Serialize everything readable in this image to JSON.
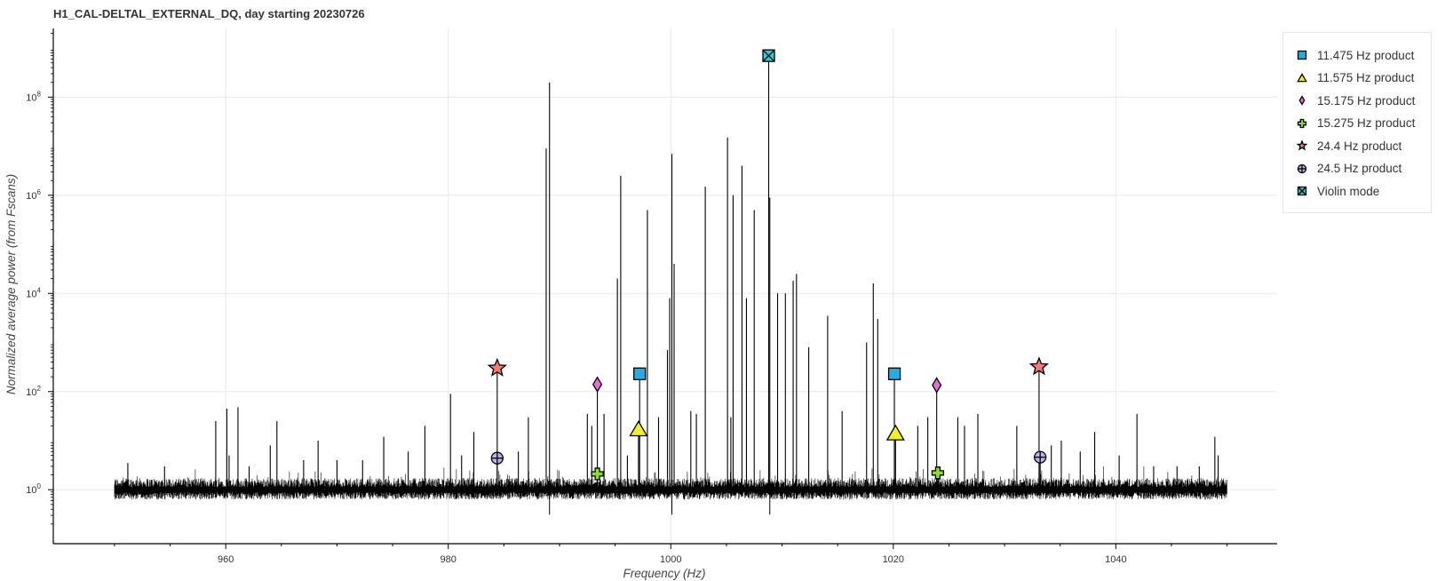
{
  "chart_data": {
    "type": "line",
    "title": "H1_CAL-DELTAL_EXTERNAL_DQ, day starting 20230726",
    "xlabel": "Frequency (Hz)",
    "ylabel": "Normalized average power (from Fscans)",
    "xlim": [
      944.5,
      1054.5
    ],
    "ylim_log10": [
      -1.1,
      9.4
    ],
    "y_scale": "log",
    "grid": true,
    "legend_position": "right",
    "x_ticks": [
      960,
      980,
      1000,
      1020,
      1040
    ],
    "x_tick_labels": [
      "960",
      "980",
      "1000",
      "1020",
      "1040"
    ],
    "y_ticks_exp": [
      0,
      2,
      4,
      6,
      8
    ],
    "y_tick_labels": [
      {
        "base": "10",
        "exp": "0"
      },
      {
        "base": "10",
        "exp": "2"
      },
      {
        "base": "10",
        "exp": "4"
      },
      {
        "base": "10",
        "exp": "6"
      },
      {
        "base": "10",
        "exp": "8"
      }
    ],
    "noise_floor": {
      "x_start": 950,
      "x_end": 1050,
      "level": 1
    },
    "spectrum_peaks": [
      {
        "x": 951.2,
        "y": 3.5
      },
      {
        "x": 954.5,
        "y": 3
      },
      {
        "x": 959.1,
        "y": 25
      },
      {
        "x": 960.1,
        "y": 45
      },
      {
        "x": 960.3,
        "y": 5
      },
      {
        "x": 961.1,
        "y": 48
      },
      {
        "x": 962.1,
        "y": 3
      },
      {
        "x": 964.0,
        "y": 8
      },
      {
        "x": 964.6,
        "y": 25
      },
      {
        "x": 967.0,
        "y": 4
      },
      {
        "x": 968.3,
        "y": 10
      },
      {
        "x": 970.0,
        "y": 4
      },
      {
        "x": 972.3,
        "y": 4
      },
      {
        "x": 974.2,
        "y": 12
      },
      {
        "x": 976.4,
        "y": 6
      },
      {
        "x": 977.9,
        "y": 20
      },
      {
        "x": 980.2,
        "y": 90
      },
      {
        "x": 981.2,
        "y": 5
      },
      {
        "x": 982.3,
        "y": 15
      },
      {
        "x": 986.3,
        "y": 6
      },
      {
        "x": 987.2,
        "y": 30
      },
      {
        "x": 988.8,
        "y": 9000000
      },
      {
        "x": 989.1,
        "y": 200000000
      },
      {
        "x": 992.5,
        "y": 35
      },
      {
        "x": 992.9,
        "y": 20
      },
      {
        "x": 994.0,
        "y": 35
      },
      {
        "x": 995.2,
        "y": 20000
      },
      {
        "x": 995.5,
        "y": 2500000
      },
      {
        "x": 996.1,
        "y": 5
      },
      {
        "x": 997.9,
        "y": 500000
      },
      {
        "x": 998.9,
        "y": 30
      },
      {
        "x": 999.7,
        "y": 700
      },
      {
        "x": 999.9,
        "y": 8000
      },
      {
        "x": 1000.1,
        "y": 7000000
      },
      {
        "x": 1000.3,
        "y": 40000
      },
      {
        "x": 1001.8,
        "y": 40
      },
      {
        "x": 1002.3,
        "y": 35
      },
      {
        "x": 1003.1,
        "y": 1500000
      },
      {
        "x": 1005.1,
        "y": 15000000
      },
      {
        "x": 1005.4,
        "y": 30
      },
      {
        "x": 1005.6,
        "y": 1000000
      },
      {
        "x": 1006.4,
        "y": 4000000
      },
      {
        "x": 1006.8,
        "y": 8000
      },
      {
        "x": 1007.5,
        "y": 500000
      },
      {
        "x": 1008.9,
        "y": 900000
      },
      {
        "x": 1009.6,
        "y": 10000
      },
      {
        "x": 1010.3,
        "y": 10000
      },
      {
        "x": 1011.0,
        "y": 18000
      },
      {
        "x": 1011.3,
        "y": 25000
      },
      {
        "x": 1012.4,
        "y": 800
      },
      {
        "x": 1014.1,
        "y": 3500
      },
      {
        "x": 1015.4,
        "y": 40
      },
      {
        "x": 1017.6,
        "y": 1000
      },
      {
        "x": 1018.2,
        "y": 16000
      },
      {
        "x": 1018.6,
        "y": 3000
      },
      {
        "x": 1022.2,
        "y": 20
      },
      {
        "x": 1023.1,
        "y": 30
      },
      {
        "x": 1025.8,
        "y": 30
      },
      {
        "x": 1026.4,
        "y": 20
      },
      {
        "x": 1027.6,
        "y": 35
      },
      {
        "x": 1031.1,
        "y": 20
      },
      {
        "x": 1034.2,
        "y": 8
      },
      {
        "x": 1035.1,
        "y": 10
      },
      {
        "x": 1036.8,
        "y": 6
      },
      {
        "x": 1038.1,
        "y": 15
      },
      {
        "x": 1040.3,
        "y": 5
      },
      {
        "x": 1041.9,
        "y": 35
      },
      {
        "x": 1043.4,
        "y": 3
      },
      {
        "x": 1045.5,
        "y": 3
      },
      {
        "x": 1047.5,
        "y": 3
      },
      {
        "x": 1048.9,
        "y": 12
      },
      {
        "x": 1049.2,
        "y": 5
      }
    ],
    "series": [
      {
        "name": "11.475 Hz product",
        "marker": "square",
        "color": "#29aae1",
        "points": [
          {
            "x": 997.2,
            "y": 230
          },
          {
            "x": 1020.1,
            "y": 230
          }
        ]
      },
      {
        "name": "11.575 Hz product",
        "marker": "triangle",
        "color": "#f0f028",
        "points": [
          {
            "x": 997.1,
            "y": 17
          },
          {
            "x": 1020.2,
            "y": 14
          }
        ]
      },
      {
        "name": "15.175 Hz product",
        "marker": "diamond",
        "color": "#e36fd9",
        "points": [
          {
            "x": 993.4,
            "y": 140
          },
          {
            "x": 1023.9,
            "y": 135
          }
        ]
      },
      {
        "name": "15.275 Hz product",
        "marker": "cross",
        "color": "#8fdb30",
        "points": [
          {
            "x": 993.4,
            "y": 2.1
          },
          {
            "x": 1024.0,
            "y": 2.2
          }
        ]
      },
      {
        "name": "24.4 Hz product",
        "marker": "star",
        "color": "#f57a7a",
        "points": [
          {
            "x": 984.4,
            "y": 300
          },
          {
            "x": 1033.1,
            "y": 320
          }
        ]
      },
      {
        "name": "24.5 Hz product",
        "marker": "circle-cross",
        "color": "#b8b3f0",
        "points": [
          {
            "x": 984.4,
            "y": 4.4
          },
          {
            "x": 1033.2,
            "y": 4.6
          }
        ]
      },
      {
        "name": "Violin mode",
        "marker": "square-x",
        "color": "#36c7d0",
        "points": [
          {
            "x": 1008.8,
            "y": 700000000
          }
        ]
      }
    ]
  }
}
